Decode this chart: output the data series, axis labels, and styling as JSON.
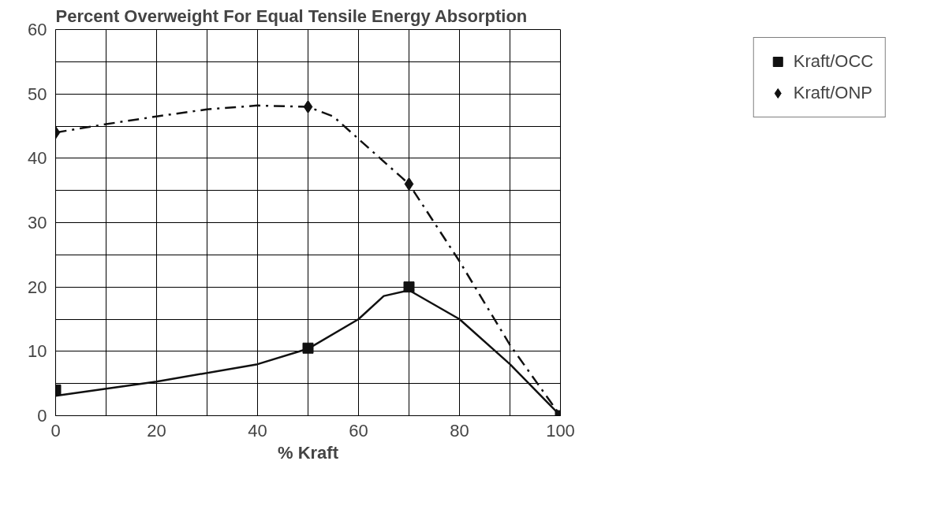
{
  "chart_data": {
    "type": "scatter",
    "title": "Percent Overweight For Equal Tensile Energy Absorption",
    "xlabel": "% Kraft",
    "x": [
      0,
      50,
      70,
      100
    ],
    "series": [
      {
        "name": "Kraft/OCC",
        "color": "#111111",
        "marker": "square",
        "values": [
          4,
          10.5,
          20,
          0
        ]
      },
      {
        "name": "Kraft/ONP",
        "color": "#111111",
        "marker": "diamond",
        "values": [
          44,
          48,
          36,
          null
        ]
      },
      {
        "type": "line",
        "color": "#111111",
        "line_style": "solid",
        "marker": "none",
        "x": [
          0,
          20,
          40,
          50,
          60,
          65,
          70,
          80,
          90,
          100
        ],
        "values": [
          3.1,
          5.3,
          8,
          10.4,
          15,
          18.6,
          19.5,
          15,
          8,
          0
        ]
      },
      {
        "type": "line",
        "color": "#111111",
        "line_style": "dashed",
        "marker": "none",
        "x": [
          0,
          10,
          20,
          30,
          40,
          50,
          55,
          60,
          70,
          80,
          90,
          100
        ],
        "values": [
          44,
          45.3,
          46.5,
          47.6,
          48.2,
          48,
          46.5,
          43,
          36,
          24,
          11,
          0
        ]
      }
    ],
    "xlim": [
      0,
      100
    ],
    "ylim": [
      0,
      60
    ],
    "xticks": [
      0,
      {
        "value": 10,
        "label": null
      },
      20,
      {
        "value": 30,
        "label": null
      },
      40,
      {
        "value": 50,
        "label": null
      },
      60,
      {
        "value": 70,
        "label": null
      },
      80,
      {
        "value": 90,
        "label": null
      },
      100
    ],
    "yticks": [
      0,
      {
        "value": 5,
        "label": null
      },
      10,
      {
        "value": 15,
        "label": null
      },
      20,
      {
        "value": 25,
        "label": null
      },
      30,
      {
        "value": 35,
        "label": null
      },
      40,
      {
        "value": 45,
        "label": null
      },
      50,
      {
        "value": 55,
        "label": null
      },
      60
    ],
    "grid": true,
    "legend": "top right"
  }
}
